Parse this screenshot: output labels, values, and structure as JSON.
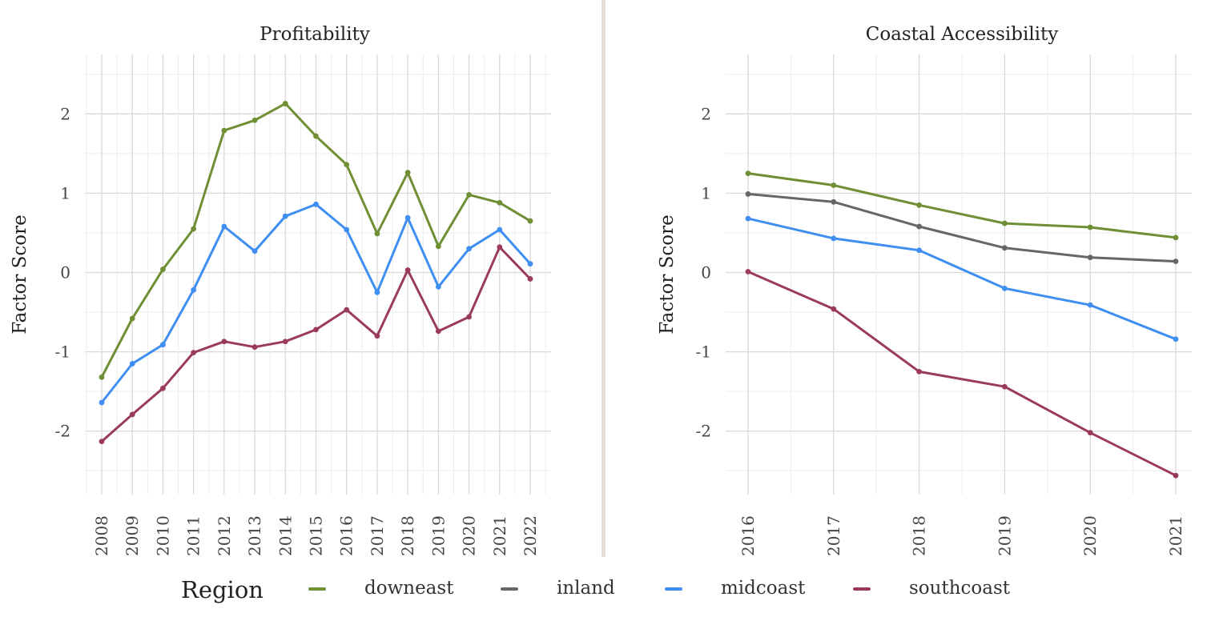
{
  "chart_data": [
    {
      "type": "line",
      "title": "Profitability",
      "xlabel": "",
      "ylabel": "Factor Score",
      "x": [
        2008,
        2009,
        2010,
        2011,
        2012,
        2013,
        2014,
        2015,
        2016,
        2017,
        2018,
        2019,
        2020,
        2021,
        2022
      ],
      "ylim": [
        -2.8,
        2.75
      ],
      "yticks": [
        -2,
        -1,
        0,
        1,
        2
      ],
      "ytick_labels": [
        "-2",
        "-1",
        "0",
        "1",
        "2"
      ],
      "xtick_labels": [
        "2008",
        "2009",
        "2010",
        "2011",
        "2012",
        "2013",
        "2014",
        "2015",
        "2016",
        "2017",
        "2018",
        "2019",
        "2020",
        "2021",
        "2022"
      ],
      "grid": true,
      "series": [
        {
          "name": "downeast",
          "color": "#6f8f35",
          "values": [
            -1.32,
            -0.58,
            0.04,
            0.55,
            1.79,
            1.92,
            2.13,
            1.72,
            1.36,
            0.49,
            1.26,
            0.33,
            0.98,
            0.88,
            0.65
          ]
        },
        {
          "name": "midcoast",
          "color": "#3f8ef1",
          "values": [
            -1.64,
            -1.15,
            -0.91,
            -0.22,
            0.58,
            0.27,
            0.71,
            0.86,
            0.54,
            -0.25,
            0.69,
            -0.18,
            0.3,
            0.54,
            0.11
          ]
        },
        {
          "name": "southcoast",
          "color": "#9b3b5a",
          "values": [
            -2.13,
            -1.79,
            -1.46,
            -1.01,
            -0.87,
            -0.94,
            -0.87,
            -0.72,
            -0.47,
            -0.8,
            0.03,
            -0.74,
            -0.56,
            0.32,
            -0.08
          ]
        }
      ]
    },
    {
      "type": "line",
      "title": "Coastal Accessibility",
      "xlabel": "",
      "ylabel": "Factor Score",
      "x": [
        2016,
        2017,
        2018,
        2019,
        2020,
        2021
      ],
      "ylim": [
        -2.8,
        2.75
      ],
      "yticks": [
        -2,
        -1,
        0,
        1,
        2
      ],
      "ytick_labels": [
        "-2",
        "-1",
        "0",
        "1",
        "2"
      ],
      "xtick_labels": [
        "2016",
        "2017",
        "2018",
        "2019",
        "2020",
        "2021"
      ],
      "grid": true,
      "series": [
        {
          "name": "downeast",
          "color": "#6f8f35",
          "values": [
            1.25,
            1.1,
            0.85,
            0.62,
            0.57,
            0.44
          ]
        },
        {
          "name": "inland",
          "color": "#666666",
          "values": [
            0.99,
            0.89,
            0.58,
            0.31,
            0.19,
            0.14
          ]
        },
        {
          "name": "midcoast",
          "color": "#3f8ef1",
          "values": [
            0.68,
            0.43,
            0.28,
            -0.2,
            -0.41,
            -0.84
          ]
        },
        {
          "name": "southcoast",
          "color": "#9b3b5a",
          "values": [
            0.01,
            -0.46,
            -1.25,
            -1.44,
            -2.02,
            -2.56
          ]
        }
      ]
    }
  ],
  "legend": {
    "title": "Region",
    "placement": "bottom",
    "items": [
      {
        "label": "downeast",
        "color": "#6f8f35"
      },
      {
        "label": "inland",
        "color": "#666666"
      },
      {
        "label": "midcoast",
        "color": "#3f8ef1"
      },
      {
        "label": "southcoast",
        "color": "#9b3b5a"
      }
    ]
  }
}
